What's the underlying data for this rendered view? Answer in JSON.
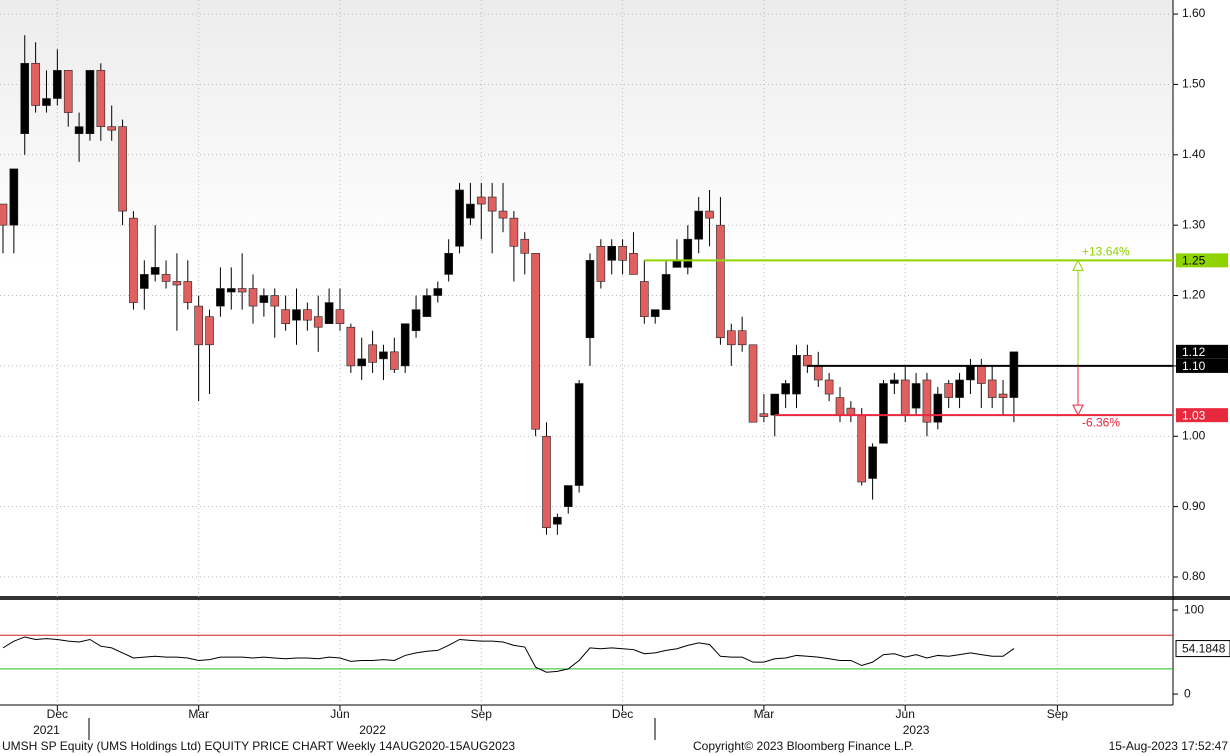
{
  "chart_data": [
    {
      "type": "candlestick",
      "categories": [
        null,
        null,
        null,
        null,
        null,
        "Dec",
        null,
        null,
        null,
        null,
        null,
        null,
        null,
        null,
        null,
        null,
        null,
        null,
        "Mar",
        null,
        null,
        null,
        null,
        null,
        null,
        null,
        null,
        null,
        null,
        null,
        null,
        "Jun",
        null,
        null,
        null,
        null,
        null,
        null,
        null,
        null,
        null,
        null,
        null,
        null,
        "Sep",
        null,
        null,
        null,
        null,
        null,
        null,
        null,
        null,
        null,
        null,
        null,
        null,
        "Dec",
        null,
        null,
        null,
        null,
        null,
        null,
        null,
        null,
        null,
        null,
        null,
        null,
        "Mar",
        null,
        null,
        null,
        null,
        null,
        null,
        null,
        null,
        null,
        null,
        null,
        null,
        "Jun",
        null,
        null,
        null,
        null,
        null,
        null,
        null,
        null,
        null,
        null,
        null,
        null,
        null,
        "Sep",
        null,
        null,
        null,
        null,
        null,
        null,
        null,
        null,
        null,
        null
      ],
      "years": [
        null,
        null,
        null,
        null,
        "2021",
        null,
        null,
        null,
        null,
        null,
        null,
        null,
        null,
        null,
        null,
        null,
        null,
        null,
        null,
        null,
        null,
        null,
        null,
        null,
        null,
        null,
        null,
        null,
        null,
        null,
        null,
        null,
        null,
        null,
        "2022",
        null,
        null,
        null,
        null,
        null,
        null,
        null,
        null,
        null,
        null,
        null,
        null,
        null,
        null,
        null,
        null,
        null,
        null,
        null,
        null,
        null,
        null,
        null,
        null,
        null,
        null,
        null,
        null,
        null,
        null,
        null,
        null,
        null,
        null,
        null,
        null,
        null,
        null,
        null,
        null,
        null,
        null,
        null,
        null,
        null,
        null,
        null,
        null,
        null,
        "2023",
        null,
        null,
        null,
        null,
        null,
        null,
        null,
        null,
        null,
        null,
        null,
        null,
        null,
        null,
        null,
        null,
        null,
        null,
        null,
        null,
        null,
        null,
        null
      ],
      "open": [
        1.33,
        1.3,
        1.43,
        1.53,
        1.47,
        1.48,
        1.52,
        1.43,
        1.43,
        1.52,
        1.44,
        1.44,
        1.31,
        1.21,
        1.23,
        1.23,
        1.22,
        1.22,
        1.185,
        1.17,
        1.185,
        1.205,
        1.21,
        1.21,
        1.19,
        1.2,
        1.18,
        1.165,
        1.18,
        1.17,
        1.16,
        1.18,
        1.155,
        1.1,
        1.13,
        1.11,
        1.12,
        1.1,
        1.15,
        1.17,
        1.2,
        1.23,
        1.27,
        1.31,
        1.34,
        1.34,
        1.32,
        1.31,
        1.28,
        1.26,
        1.0,
        0.875,
        0.9,
        0.93,
        1.14,
        1.27,
        1.25,
        1.27,
        1.26,
        1.22,
        1.17,
        1.18,
        1.24,
        1.24,
        1.28,
        1.32,
        1.3,
        1.15,
        1.15,
        1.13,
        1.032,
        1.03,
        1.06,
        1.06,
        1.115,
        1.1,
        1.08,
        1.055,
        1.04,
        1.03,
        0.94,
        0.99,
        1.075,
        1.08,
        1.04,
        1.08,
        1.02,
        1.075,
        1.055,
        1.08,
        1.1,
        1.08,
        1.06,
        1.055,
        null,
        null,
        null,
        null,
        null,
        null,
        null,
        null,
        null,
        null,
        null,
        null,
        null,
        null
      ],
      "high": [
        1.33,
        1.38,
        1.57,
        1.56,
        1.52,
        1.55,
        1.52,
        1.46,
        1.52,
        1.53,
        1.47,
        1.45,
        1.32,
        1.25,
        1.3,
        1.25,
        1.26,
        1.25,
        1.2,
        1.18,
        1.24,
        1.24,
        1.26,
        1.23,
        1.21,
        1.21,
        1.2,
        1.21,
        1.19,
        1.2,
        1.21,
        1.21,
        1.16,
        1.14,
        1.15,
        1.13,
        1.14,
        1.16,
        1.2,
        1.21,
        1.22,
        1.28,
        1.36,
        1.36,
        1.36,
        1.36,
        1.36,
        1.32,
        1.29,
        1.26,
        1.02,
        0.89,
        0.93,
        1.08,
        1.26,
        1.28,
        1.28,
        1.28,
        1.29,
        1.25,
        1.18,
        1.25,
        1.28,
        1.3,
        1.34,
        1.35,
        1.34,
        1.16,
        1.17,
        1.13,
        1.06,
        1.06,
        1.08,
        1.13,
        1.13,
        1.12,
        1.09,
        1.07,
        1.05,
        1.04,
        0.99,
        1.08,
        1.09,
        1.1,
        1.09,
        1.09,
        1.07,
        1.08,
        1.09,
        1.11,
        1.11,
        1.1,
        1.08,
        1.12,
        null,
        null,
        null,
        null,
        null,
        null,
        null,
        null,
        null,
        null,
        null,
        null,
        null,
        null
      ],
      "low": [
        1.26,
        1.26,
        1.4,
        1.46,
        1.46,
        1.47,
        1.44,
        1.39,
        1.42,
        1.42,
        1.42,
        1.3,
        1.18,
        1.18,
        1.22,
        1.21,
        1.15,
        1.18,
        1.05,
        1.06,
        1.17,
        1.18,
        1.18,
        1.16,
        1.17,
        1.14,
        1.15,
        1.13,
        1.15,
        1.12,
        1.16,
        1.15,
        1.09,
        1.08,
        1.09,
        1.08,
        1.09,
        1.09,
        1.14,
        1.17,
        1.19,
        1.22,
        1.26,
        1.3,
        1.28,
        1.26,
        1.29,
        1.22,
        1.23,
        1.0,
        0.86,
        0.86,
        0.89,
        0.92,
        1.1,
        1.21,
        1.23,
        1.23,
        1.23,
        1.16,
        1.16,
        1.18,
        1.24,
        1.23,
        1.26,
        1.27,
        1.13,
        1.1,
        1.12,
        1.02,
        1.02,
        1.0,
        1.04,
        1.04,
        1.09,
        1.07,
        1.05,
        1.02,
        1.02,
        0.93,
        0.91,
        0.99,
        1.06,
        1.02,
        1.03,
        1.0,
        1.01,
        1.04,
        1.04,
        1.06,
        1.04,
        1.04,
        1.03,
        1.02,
        null,
        null,
        null,
        null,
        null,
        null,
        null,
        null,
        null,
        null,
        null,
        null,
        null,
        null
      ],
      "close": [
        1.3,
        1.38,
        1.53,
        1.47,
        1.48,
        1.52,
        1.46,
        1.44,
        1.52,
        1.44,
        1.435,
        1.32,
        1.19,
        1.23,
        1.24,
        1.22,
        1.215,
        1.19,
        1.13,
        1.13,
        1.21,
        1.21,
        1.205,
        1.185,
        1.2,
        1.185,
        1.16,
        1.18,
        1.165,
        1.155,
        1.19,
        1.16,
        1.1,
        1.11,
        1.105,
        1.12,
        1.095,
        1.16,
        1.18,
        1.2,
        1.21,
        1.26,
        1.35,
        1.33,
        1.33,
        1.32,
        1.31,
        1.27,
        1.26,
        1.01,
        0.87,
        0.885,
        0.93,
        1.075,
        1.25,
        1.22,
        1.27,
        1.25,
        1.23,
        1.17,
        1.18,
        1.23,
        1.25,
        1.28,
        1.32,
        1.31,
        1.14,
        1.13,
        1.13,
        1.02,
        1.028,
        1.06,
        1.075,
        1.115,
        1.1,
        1.08,
        1.06,
        1.03,
        1.03,
        0.935,
        0.985,
        1.075,
        1.08,
        1.03,
        1.075,
        1.02,
        1.06,
        1.055,
        1.08,
        1.1,
        1.075,
        1.055,
        1.055,
        1.12,
        null,
        null,
        null,
        null,
        null,
        null,
        null,
        null,
        null,
        null,
        null,
        null,
        null,
        null
      ],
      "up_color": "#000000",
      "down_color": "#e06060",
      "ylim": [
        0.773,
        1.62
      ],
      "yticks": [
        {
          "value": 0.8,
          "label": "0.80"
        },
        {
          "value": 0.9,
          "label": "0.90"
        },
        {
          "value": 1.0,
          "label": "1.00"
        },
        {
          "value": 1.1,
          "label": "1.10"
        },
        {
          "value": 1.2,
          "label": "1.20"
        },
        {
          "value": 1.3,
          "label": "1.30"
        },
        {
          "value": 1.4,
          "label": "1.40"
        },
        {
          "value": 1.5,
          "label": "1.50"
        },
        {
          "value": 1.6,
          "label": "1.60"
        }
      ],
      "grid": true,
      "last_price": 1.12,
      "levels": [
        {
          "value": 1.25,
          "color": "#8fd400",
          "change": "+13.64%"
        },
        {
          "value": 1.1,
          "label": "1.10",
          "color": "#000000"
        },
        {
          "value": 1.03,
          "color": "#e8283c",
          "change": "-6.36%"
        }
      ],
      "footer": {
        "left": "UMSH SP Equity (UMS Holdings Ltd) EQUITY PRICE CHART  Weekly 14AUG2020-15AUG2023",
        "center": "Copyright© 2023 Bloomberg Finance L.P.",
        "right": "15-Aug-2023 17:52:47"
      }
    },
    {
      "type": "line",
      "color": "#000000",
      "values": [
        55,
        63,
        68,
        65,
        66,
        65,
        63,
        62,
        65,
        57,
        55,
        49,
        43,
        44,
        45,
        44,
        44,
        43,
        40,
        41,
        44,
        44,
        44,
        43,
        44,
        43,
        42,
        43,
        43,
        42,
        44,
        43,
        39,
        40,
        40,
        41,
        40,
        46,
        49,
        51,
        52,
        58,
        65,
        64,
        63,
        63,
        62,
        58,
        56,
        32,
        26,
        27,
        30,
        40,
        55,
        54,
        55,
        54,
        53,
        48,
        49,
        52,
        54,
        58,
        61,
        59,
        45,
        44,
        44,
        38,
        38,
        42,
        43,
        46,
        45,
        44,
        42,
        40,
        40,
        34,
        38,
        47,
        48,
        44,
        47,
        43,
        46,
        45,
        47,
        49,
        47,
        45,
        45,
        54.1848,
        null,
        null,
        null,
        null,
        null,
        null,
        null,
        null,
        null,
        null,
        null,
        null,
        null,
        null
      ],
      "ylim": [
        -13,
        112
      ],
      "yticks": [
        0,
        100
      ],
      "overbought": 70,
      "oversold": 30,
      "overbought_color": "#d02020",
      "oversold_color": "#20c020"
    }
  ]
}
